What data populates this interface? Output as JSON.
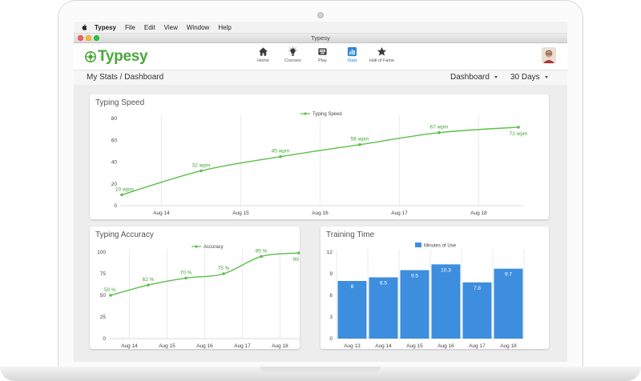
{
  "menubar": {
    "app_name": "Typesy",
    "items": [
      "File",
      "Edit",
      "View",
      "Window",
      "Help"
    ]
  },
  "window": {
    "title": "Typesy"
  },
  "brand": {
    "name": "Typesy",
    "color": "#4aa83a"
  },
  "nav": [
    {
      "label": "Home",
      "icon": "home-icon",
      "active": false
    },
    {
      "label": "Courses",
      "icon": "lightbulb-icon",
      "active": false
    },
    {
      "label": "Play",
      "icon": "keyboard-icon",
      "active": false
    },
    {
      "label": "Stats",
      "icon": "bar-chart-icon",
      "active": true
    },
    {
      "label": "Hall of Fame",
      "icon": "star-icon",
      "active": false
    }
  ],
  "subheader": {
    "breadcrumb": "My Stats / Dashboard",
    "view_dropdown": "Dashboard",
    "range_dropdown": "30 Days"
  },
  "colors": {
    "line": "#5cbf4a",
    "bar": "#3d8ede",
    "accent": "#2f87d6"
  },
  "chart_data": [
    {
      "type": "line",
      "title": "Typing Speed",
      "legend": "Typing Speed",
      "legend_position": "top-center",
      "x": [
        0,
        1,
        2,
        3,
        4,
        5
      ],
      "values": [
        10,
        32,
        45,
        56,
        67,
        72
      ],
      "data_labels": [
        "10 wpm",
        "32 wpm",
        "45 wpm",
        "56 wpm",
        "67 wpm",
        "72 wpm"
      ],
      "x_ticks": [
        "Aug 14",
        "Aug 15",
        "Aug 16",
        "Aug 17",
        "Aug 18"
      ],
      "y_ticks": [
        0,
        20,
        40,
        60,
        80
      ],
      "ylim": [
        0,
        80
      ],
      "grid": "vertical"
    },
    {
      "type": "line",
      "title": "Typing Accuracy",
      "legend": "Accuracy",
      "legend_position": "top-center",
      "x": [
        0,
        1,
        2,
        3,
        4,
        5
      ],
      "values": [
        50,
        62,
        70,
        75,
        95,
        99
      ],
      "data_labels": [
        "50 %",
        "62 %",
        "70 %",
        "75 %",
        "95 %",
        "99 %"
      ],
      "x_ticks": [
        "Aug 14",
        "Aug 15",
        "Aug 16",
        "Aug 17",
        "Aug 18"
      ],
      "y_ticks": [
        0,
        25,
        50,
        75,
        100
      ],
      "ylim": [
        0,
        100
      ],
      "grid": "vertical"
    },
    {
      "type": "bar",
      "title": "Training Time",
      "legend": "Minutes of Use",
      "legend_position": "top-center",
      "categories": [
        "Aug 13",
        "Aug 14",
        "Aug 15",
        "Aug 16",
        "Aug 17",
        "Aug 18"
      ],
      "values": [
        8,
        8.5,
        9.5,
        10.3,
        7.8,
        9.7
      ],
      "data_labels": [
        "8",
        "8.5",
        "9.5",
        "10.3",
        "7.8",
        "9.7"
      ],
      "y_ticks": [
        0,
        3,
        6,
        9,
        12
      ],
      "ylim": [
        0,
        12
      ],
      "grid": "vertical"
    }
  ]
}
